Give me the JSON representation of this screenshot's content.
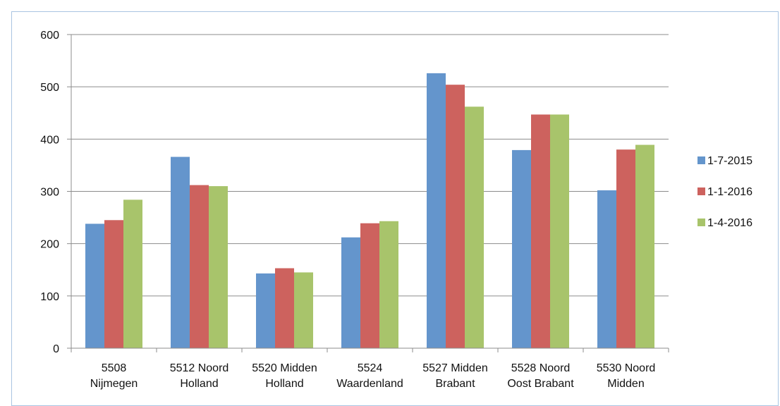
{
  "chart_data": {
    "type": "bar",
    "categories": [
      [
        "5508",
        "Nijmegen"
      ],
      [
        "5512 Noord",
        "Holland"
      ],
      [
        "5520 Midden",
        "Holland"
      ],
      [
        "5524",
        "Waardenland"
      ],
      [
        "5527 Midden",
        "Brabant"
      ],
      [
        "5528 Noord",
        "Oost Brabant"
      ],
      [
        "5530 Noord",
        "Midden"
      ]
    ],
    "series": [
      {
        "name": "1-7-2015",
        "color": "#6495cc",
        "values": [
          238,
          366,
          143,
          212,
          526,
          379,
          302
        ]
      },
      {
        "name": "1-1-2016",
        "color": "#cd625e",
        "values": [
          245,
          312,
          153,
          239,
          504,
          447,
          380
        ]
      },
      {
        "name": "1-4-2016",
        "color": "#a8c46b",
        "values": [
          284,
          310,
          145,
          243,
          462,
          447,
          389
        ]
      }
    ],
    "yticks": [
      "0",
      "100",
      "200",
      "300",
      "400",
      "500",
      "600"
    ],
    "ylim": [
      0,
      600
    ],
    "grid": true,
    "legend": "right"
  }
}
